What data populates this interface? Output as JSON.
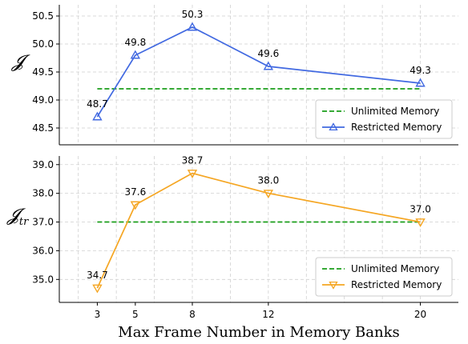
{
  "chart_data": [
    {
      "type": "line",
      "ylabel": "𝓙",
      "x": [
        3,
        5,
        8,
        12,
        20
      ],
      "xlim": [
        1,
        22
      ],
      "ylim": [
        48.2,
        50.7
      ],
      "yticks": [
        48.5,
        49.0,
        49.5,
        50.0,
        50.5
      ],
      "grid": true,
      "legend_position": "lower-right",
      "series": [
        {
          "name": "Unlimited Memory",
          "style": "dashed",
          "color": "#1a9e1a",
          "values": [
            49.2,
            49.2,
            49.2,
            49.2,
            49.2
          ]
        },
        {
          "name": "Restricted Memory",
          "style": "solid",
          "marker": "triangle-up",
          "color": "#4169e1",
          "values": [
            48.7,
            49.8,
            50.3,
            49.6,
            49.3
          ],
          "labels": [
            "48.7",
            "49.8",
            "50.3",
            "49.6",
            "49.3"
          ]
        }
      ]
    },
    {
      "type": "line",
      "ylabel": "𝓙",
      "ylabel_sub": "tr",
      "x": [
        3,
        5,
        8,
        12,
        20
      ],
      "xlim": [
        1,
        22
      ],
      "ylim": [
        34.2,
        39.3
      ],
      "yticks": [
        35.0,
        36.0,
        37.0,
        38.0,
        39.0
      ],
      "grid": true,
      "legend_position": "lower-right",
      "series": [
        {
          "name": "Unlimited Memory",
          "style": "dashed",
          "color": "#1a9e1a",
          "values": [
            37.0,
            37.0,
            37.0,
            37.0,
            37.0
          ]
        },
        {
          "name": "Restricted Memory",
          "style": "solid",
          "marker": "triangle-down",
          "color": "#f5a623",
          "values": [
            34.7,
            37.6,
            38.7,
            38.0,
            37.0
          ],
          "labels": [
            "34.7",
            "37.6",
            "38.7",
            "38.0",
            "37.0"
          ]
        }
      ]
    }
  ],
  "xlabel": "Max Frame Number in Memory Banks",
  "xtick_labels": [
    "3",
    "5",
    "8",
    "12",
    "20"
  ]
}
